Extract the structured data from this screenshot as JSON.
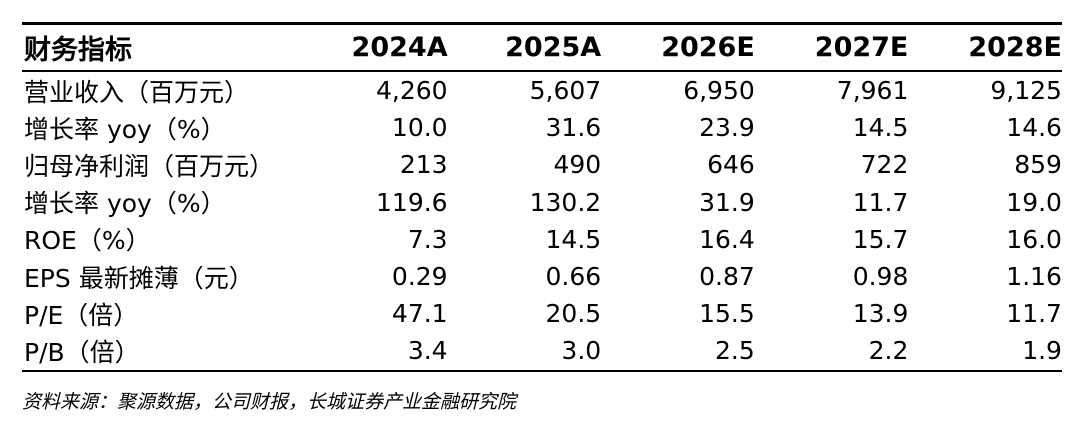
{
  "table": {
    "header": {
      "label": "财务指标",
      "years": [
        "2024A",
        "2025A",
        "2026E",
        "2027E",
        "2028E"
      ]
    },
    "rows": [
      {
        "label": "营业收入（百万元）",
        "values": [
          "4,260",
          "5,607",
          "6,950",
          "7,961",
          "9,125"
        ]
      },
      {
        "label": "增长率 yoy（%）",
        "values": [
          "10.0",
          "31.6",
          "23.9",
          "14.5",
          "14.6"
        ]
      },
      {
        "label": "归母净利润（百万元）",
        "values": [
          "213",
          "490",
          "646",
          "722",
          "859"
        ]
      },
      {
        "label": "增长率 yoy（%）",
        "values": [
          "119.6",
          "130.2",
          "31.9",
          "11.7",
          "19.0"
        ]
      },
      {
        "label": "ROE（%）",
        "values": [
          "7.3",
          "14.5",
          "16.4",
          "15.7",
          "16.0"
        ]
      },
      {
        "label": "EPS 最新摊薄（元）",
        "values": [
          "0.29",
          "0.66",
          "0.87",
          "0.98",
          "1.16"
        ]
      },
      {
        "label": "P/E（倍）",
        "values": [
          "47.1",
          "20.5",
          "15.5",
          "13.9",
          "11.7"
        ]
      },
      {
        "label": "P/B（倍）",
        "values": [
          "3.4",
          "3.0",
          "2.5",
          "2.2",
          "1.9"
        ]
      }
    ]
  },
  "source": "资料来源：聚源数据，公司财报，长城证券产业金融研究院"
}
